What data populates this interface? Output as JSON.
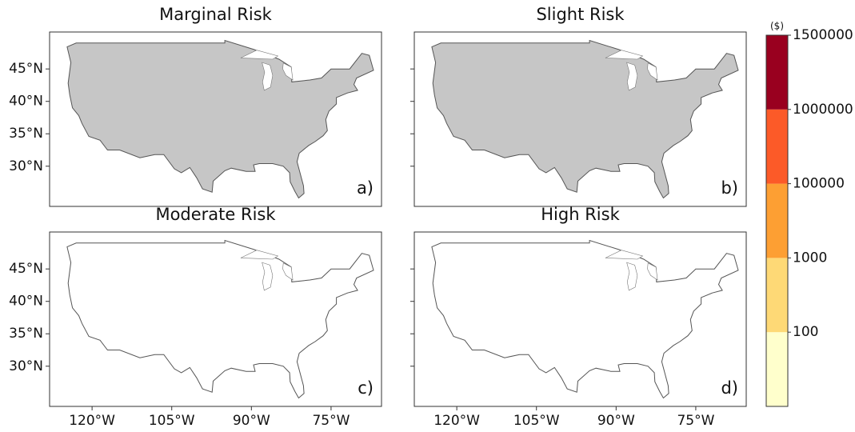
{
  "chart_data": {
    "type": "map",
    "panels": [
      {
        "title": "Marginal Risk",
        "label": "a)"
      },
      {
        "title": "Slight Risk",
        "label": "b)"
      },
      {
        "title": "Moderate Risk",
        "label": "c)"
      },
      {
        "title": "High Risk",
        "label": "d)"
      }
    ],
    "xlim": [
      -128,
      -65.5
    ],
    "ylim": [
      23.8,
      50.7
    ],
    "xticks": [
      {
        "value": -120,
        "label": "120°W"
      },
      {
        "value": -105,
        "label": "105°W"
      },
      {
        "value": -90,
        "label": "90°W"
      },
      {
        "value": -75,
        "label": "75°W"
      }
    ],
    "yticks": [
      {
        "value": 30,
        "label": "30°N"
      },
      {
        "value": 35,
        "label": "35°N"
      },
      {
        "value": 40,
        "label": "40°N"
      },
      {
        "value": 45,
        "label": "45°N"
      }
    ],
    "colorbar": {
      "label": "($)",
      "ticks": [
        100,
        1000,
        100000,
        1000000,
        1500000
      ],
      "colors": [
        "#ffffcc",
        "#fed976",
        "#fd9f33",
        "#fc5a28",
        "#99001f"
      ]
    }
  }
}
